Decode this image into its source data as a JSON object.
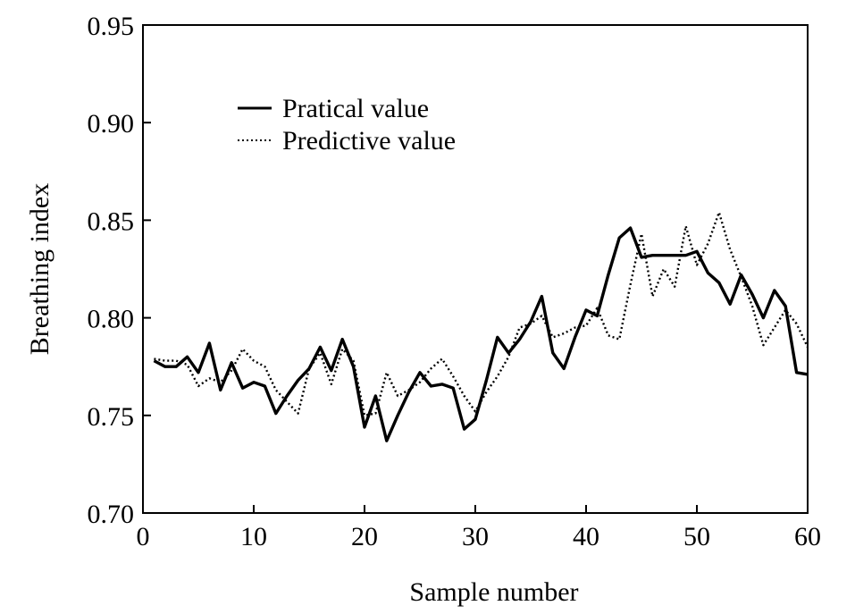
{
  "chart_data": {
    "type": "line",
    "xlabel": "Sample number",
    "ylabel": "Breathing index",
    "xlim": [
      0,
      60
    ],
    "ylim": [
      0.7,
      0.95
    ],
    "xticks": [
      0,
      10,
      20,
      30,
      40,
      50,
      60
    ],
    "xtick_labels": [
      "0",
      "10",
      "20",
      "30",
      "40",
      "50",
      "60"
    ],
    "yticks": [
      0.7,
      0.75,
      0.8,
      0.85,
      0.9,
      0.95
    ],
    "ytick_labels": [
      "0.70",
      "0.75",
      "0.80",
      "0.85",
      "0.90",
      "0.95"
    ],
    "grid": false,
    "legend_position": "top-left",
    "series": [
      {
        "name": "Pratical value",
        "style": "solid",
        "color": "#000000",
        "x": [
          1,
          2,
          3,
          4,
          5,
          6,
          7,
          8,
          9,
          10,
          11,
          12,
          13,
          14,
          15,
          16,
          17,
          18,
          19,
          20,
          21,
          22,
          23,
          24,
          25,
          26,
          27,
          28,
          29,
          30,
          31,
          32,
          33,
          34,
          35,
          36,
          37,
          38,
          39,
          40,
          41,
          42,
          43,
          44,
          45,
          46,
          47,
          48,
          49,
          50,
          51,
          52,
          53,
          54,
          55,
          56,
          57,
          58,
          59,
          60
        ],
        "y": [
          0.778,
          0.775,
          0.775,
          0.78,
          0.772,
          0.787,
          0.763,
          0.777,
          0.764,
          0.767,
          0.765,
          0.751,
          0.76,
          0.768,
          0.774,
          0.785,
          0.773,
          0.789,
          0.775,
          0.744,
          0.76,
          0.737,
          0.75,
          0.762,
          0.772,
          0.765,
          0.766,
          0.764,
          0.743,
          0.748,
          0.768,
          0.79,
          0.782,
          0.789,
          0.798,
          0.811,
          0.782,
          0.774,
          0.79,
          0.804,
          0.801,
          0.822,
          0.841,
          0.846,
          0.831,
          0.832,
          0.832,
          0.832,
          0.832,
          0.834,
          0.823,
          0.818,
          0.807,
          0.822,
          0.812,
          0.8,
          0.814,
          0.806,
          0.772,
          0.771
        ]
      },
      {
        "name": "Predictive value",
        "style": "dotted",
        "color": "#000000",
        "x": [
          1,
          2,
          3,
          4,
          5,
          6,
          7,
          8,
          9,
          10,
          11,
          12,
          13,
          14,
          15,
          16,
          17,
          18,
          19,
          20,
          21,
          22,
          23,
          24,
          25,
          26,
          27,
          28,
          29,
          30,
          31,
          32,
          33,
          34,
          35,
          36,
          37,
          38,
          39,
          40,
          41,
          42,
          43,
          44,
          45,
          46,
          47,
          48,
          49,
          50,
          51,
          52,
          53,
          54,
          55,
          56,
          57,
          58,
          59,
          60
        ],
        "y": [
          0.779,
          0.778,
          0.778,
          0.776,
          0.765,
          0.769,
          0.767,
          0.773,
          0.784,
          0.778,
          0.775,
          0.763,
          0.757,
          0.751,
          0.774,
          0.782,
          0.766,
          0.784,
          0.778,
          0.75,
          0.751,
          0.772,
          0.76,
          0.763,
          0.767,
          0.774,
          0.779,
          0.77,
          0.76,
          0.752,
          0.762,
          0.77,
          0.78,
          0.795,
          0.797,
          0.801,
          0.79,
          0.792,
          0.795,
          0.796,
          0.805,
          0.791,
          0.789,
          0.817,
          0.843,
          0.811,
          0.825,
          0.816,
          0.847,
          0.827,
          0.838,
          0.854,
          0.835,
          0.821,
          0.806,
          0.786,
          0.795,
          0.804,
          0.797,
          0.785
        ]
      }
    ]
  }
}
